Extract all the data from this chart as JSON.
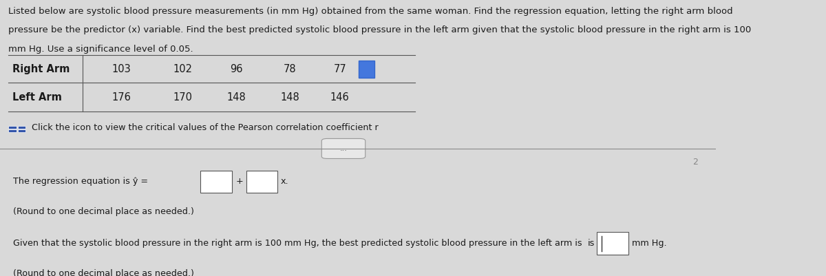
{
  "bg_color": "#d9d9d9",
  "paragraph_text": "Listed below are systolic blood pressure measurements (in mm Hg) obtained from the same woman. Find the regression equation, letting the right arm blood\npressure be the predictor (x) variable. Find the best predicted systolic blood pressure in the left arm given that the systolic blood pressure in the right arm is 100\nmm Hg. Use a significance level of 0.05.",
  "table_header_left": "Right Arm",
  "table_row_left": "Left Arm",
  "table_right_arm": [
    "103",
    "102",
    "96",
    "78",
    "77"
  ],
  "table_left_arm": [
    "176",
    "170",
    "148",
    "148",
    "146"
  ],
  "click_icon_text": "Click the icon to view the critical values of the Pearson correlation coefficient r",
  "regression_text_part1": "The regression equation is ŷ = ",
  "regression_text_plus": "+",
  "regression_text_x": "x.",
  "round_note1": "(Round to one decimal place as needed.)",
  "predicted_text_part1": "Given that the systolic blood pressure in the right arm is 100 mm Hg, the best predicted systolic blood pressure in the left arm is",
  "predicted_text_is": "is",
  "predicted_text_mmhg": "mm Hg.",
  "round_note2": "(Round to one decimal place as needed.)",
  "font_size_para": 9.5,
  "font_size_table": 10.5,
  "font_size_small": 9.2,
  "text_color": "#1a1a1a",
  "box_color": "#ffffff",
  "box_edge_color": "#555555",
  "icon_color": "#3355aa",
  "ellipsis_box_color": "#e8e8e8",
  "ellipsis_box_edge": "#999999",
  "line_color": "#555555",
  "divider_color": "#888888"
}
